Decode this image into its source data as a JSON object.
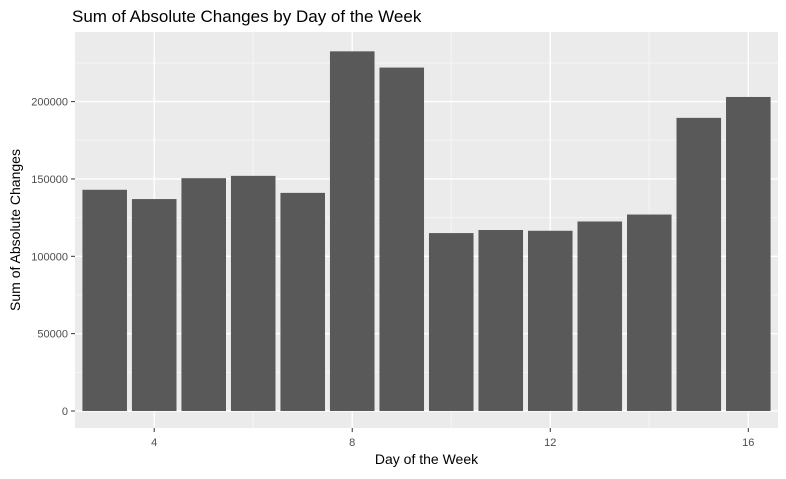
{
  "colors": {
    "panel_background": "#ebebeb",
    "major_grid": "#ffffff",
    "minor_grid": "#f5f5f5",
    "bar_fill": "#595959",
    "tick_mark": "#333333",
    "tick_text": "#4d4d4d",
    "text": "#000000"
  },
  "chart_data": {
    "type": "bar",
    "title": "Sum of Absolute Changes by Day of the Week",
    "xlabel": "Day of the Week",
    "ylabel": "Sum of Absolute Changes",
    "x": [
      3,
      4,
      5,
      6,
      7,
      8,
      9,
      10,
      11,
      12,
      13,
      14,
      15,
      16
    ],
    "values": [
      143000,
      137000,
      150500,
      152000,
      141000,
      232500,
      222000,
      115000,
      117000,
      116500,
      122500,
      127000,
      189500,
      203000
    ],
    "xlim": [
      2.4,
      16.6
    ],
    "ylim": [
      -11000,
      245000
    ],
    "xticks": [
      4,
      8,
      12,
      16
    ],
    "xtick_labels": [
      "4",
      "8",
      "12",
      "16"
    ],
    "yticks": [
      0,
      50000,
      100000,
      150000,
      200000
    ],
    "ytick_labels": [
      "0",
      "50000",
      "100000",
      "150000",
      "200000"
    ],
    "grid": true,
    "legend": "none",
    "theme": "ggplot-gray"
  }
}
